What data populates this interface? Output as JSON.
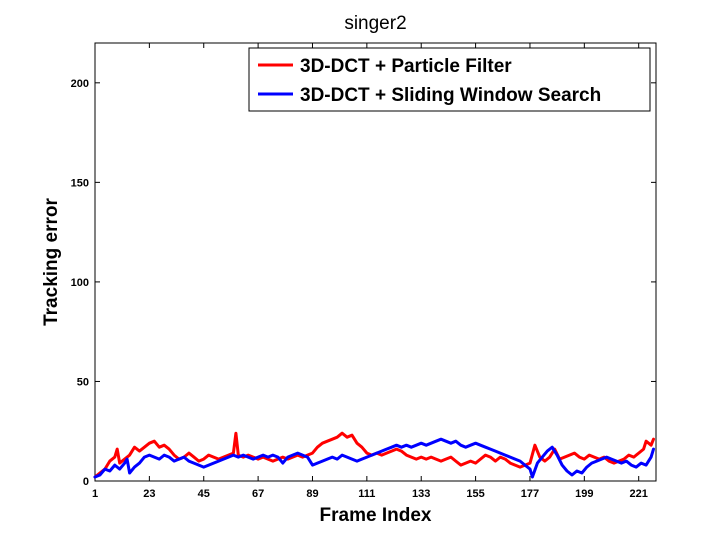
{
  "chart_data": {
    "type": "line",
    "title": "singer2",
    "xlabel": "Frame Index",
    "ylabel": "Tracking error",
    "xlim": [
      1,
      228
    ],
    "ylim": [
      0,
      220
    ],
    "xticks": [
      1,
      23,
      45,
      67,
      89,
      111,
      133,
      155,
      177,
      199,
      221
    ],
    "yticks": [
      0,
      50,
      100,
      150,
      200
    ],
    "grid": false,
    "legend_position": "top-right",
    "series": [
      {
        "name": "3D-DCT + Particle Filter",
        "color": "#ff0000",
        "points": [
          [
            1,
            2
          ],
          [
            3,
            4
          ],
          [
            5,
            6
          ],
          [
            7,
            10
          ],
          [
            9,
            12
          ],
          [
            10,
            16
          ],
          [
            11,
            9
          ],
          [
            13,
            11
          ],
          [
            15,
            13
          ],
          [
            17,
            17
          ],
          [
            19,
            15
          ],
          [
            21,
            17
          ],
          [
            23,
            19
          ],
          [
            25,
            20
          ],
          [
            27,
            17
          ],
          [
            29,
            18
          ],
          [
            31,
            16
          ],
          [
            33,
            13
          ],
          [
            35,
            11
          ],
          [
            37,
            12
          ],
          [
            39,
            14
          ],
          [
            41,
            12
          ],
          [
            43,
            10
          ],
          [
            45,
            11
          ],
          [
            47,
            13
          ],
          [
            49,
            12
          ],
          [
            51,
            11
          ],
          [
            53,
            12
          ],
          [
            55,
            13
          ],
          [
            57,
            14
          ],
          [
            58,
            24
          ],
          [
            59,
            13
          ],
          [
            61,
            12
          ],
          [
            63,
            13
          ],
          [
            65,
            12
          ],
          [
            67,
            11
          ],
          [
            69,
            12
          ],
          [
            71,
            11
          ],
          [
            73,
            10
          ],
          [
            75,
            11
          ],
          [
            77,
            12
          ],
          [
            79,
            11
          ],
          [
            81,
            12
          ],
          [
            83,
            13
          ],
          [
            85,
            12
          ],
          [
            87,
            13
          ],
          [
            89,
            14
          ],
          [
            91,
            17
          ],
          [
            93,
            19
          ],
          [
            95,
            20
          ],
          [
            97,
            21
          ],
          [
            99,
            22
          ],
          [
            101,
            24
          ],
          [
            103,
            22
          ],
          [
            105,
            23
          ],
          [
            107,
            19
          ],
          [
            109,
            17
          ],
          [
            111,
            14
          ],
          [
            113,
            13
          ],
          [
            115,
            14
          ],
          [
            117,
            13
          ],
          [
            119,
            14
          ],
          [
            121,
            15
          ],
          [
            123,
            16
          ],
          [
            125,
            15
          ],
          [
            127,
            13
          ],
          [
            129,
            12
          ],
          [
            131,
            11
          ],
          [
            133,
            12
          ],
          [
            135,
            11
          ],
          [
            137,
            12
          ],
          [
            139,
            11
          ],
          [
            141,
            10
          ],
          [
            143,
            11
          ],
          [
            145,
            12
          ],
          [
            147,
            10
          ],
          [
            149,
            8
          ],
          [
            151,
            9
          ],
          [
            153,
            10
          ],
          [
            155,
            9
          ],
          [
            157,
            11
          ],
          [
            159,
            13
          ],
          [
            161,
            12
          ],
          [
            163,
            10
          ],
          [
            165,
            12
          ],
          [
            167,
            11
          ],
          [
            169,
            9
          ],
          [
            171,
            8
          ],
          [
            173,
            7
          ],
          [
            175,
            8
          ],
          [
            177,
            9
          ],
          [
            179,
            18
          ],
          [
            181,
            12
          ],
          [
            183,
            10
          ],
          [
            185,
            12
          ],
          [
            187,
            16
          ],
          [
            189,
            11
          ],
          [
            191,
            12
          ],
          [
            193,
            13
          ],
          [
            195,
            14
          ],
          [
            197,
            12
          ],
          [
            199,
            11
          ],
          [
            201,
            13
          ],
          [
            203,
            12
          ],
          [
            205,
            11
          ],
          [
            207,
            12
          ],
          [
            209,
            10
          ],
          [
            211,
            9
          ],
          [
            213,
            10
          ],
          [
            215,
            11
          ],
          [
            217,
            13
          ],
          [
            219,
            12
          ],
          [
            221,
            14
          ],
          [
            223,
            16
          ],
          [
            224,
            20
          ],
          [
            226,
            18
          ],
          [
            227,
            21
          ]
        ]
      },
      {
        "name": "3D-DCT + Sliding Window Search",
        "color": "#0000ff",
        "points": [
          [
            1,
            2
          ],
          [
            3,
            3
          ],
          [
            5,
            6
          ],
          [
            7,
            5
          ],
          [
            9,
            8
          ],
          [
            11,
            6
          ],
          [
            13,
            9
          ],
          [
            14,
            11
          ],
          [
            15,
            4
          ],
          [
            17,
            7
          ],
          [
            19,
            9
          ],
          [
            21,
            12
          ],
          [
            23,
            13
          ],
          [
            25,
            12
          ],
          [
            27,
            11
          ],
          [
            29,
            13
          ],
          [
            31,
            12
          ],
          [
            33,
            10
          ],
          [
            35,
            11
          ],
          [
            37,
            12
          ],
          [
            39,
            10
          ],
          [
            41,
            9
          ],
          [
            43,
            8
          ],
          [
            45,
            7
          ],
          [
            47,
            8
          ],
          [
            49,
            9
          ],
          [
            51,
            10
          ],
          [
            53,
            11
          ],
          [
            55,
            12
          ],
          [
            57,
            13
          ],
          [
            59,
            12
          ],
          [
            61,
            13
          ],
          [
            63,
            12
          ],
          [
            65,
            11
          ],
          [
            67,
            12
          ],
          [
            69,
            13
          ],
          [
            71,
            12
          ],
          [
            73,
            13
          ],
          [
            75,
            12
          ],
          [
            77,
            9
          ],
          [
            79,
            12
          ],
          [
            81,
            13
          ],
          [
            83,
            14
          ],
          [
            85,
            13
          ],
          [
            87,
            12
          ],
          [
            89,
            8
          ],
          [
            91,
            9
          ],
          [
            93,
            10
          ],
          [
            95,
            11
          ],
          [
            97,
            12
          ],
          [
            99,
            11
          ],
          [
            101,
            13
          ],
          [
            103,
            12
          ],
          [
            105,
            11
          ],
          [
            107,
            10
          ],
          [
            109,
            11
          ],
          [
            111,
            12
          ],
          [
            113,
            13
          ],
          [
            115,
            14
          ],
          [
            117,
            15
          ],
          [
            119,
            16
          ],
          [
            121,
            17
          ],
          [
            123,
            18
          ],
          [
            125,
            17
          ],
          [
            127,
            18
          ],
          [
            129,
            17
          ],
          [
            131,
            18
          ],
          [
            133,
            19
          ],
          [
            135,
            18
          ],
          [
            137,
            19
          ],
          [
            139,
            20
          ],
          [
            141,
            21
          ],
          [
            143,
            20
          ],
          [
            145,
            19
          ],
          [
            147,
            20
          ],
          [
            149,
            18
          ],
          [
            151,
            17
          ],
          [
            153,
            18
          ],
          [
            155,
            19
          ],
          [
            157,
            18
          ],
          [
            159,
            17
          ],
          [
            161,
            16
          ],
          [
            163,
            15
          ],
          [
            165,
            14
          ],
          [
            167,
            13
          ],
          [
            169,
            12
          ],
          [
            171,
            11
          ],
          [
            173,
            10
          ],
          [
            175,
            8
          ],
          [
            177,
            6
          ],
          [
            178,
            2
          ],
          [
            180,
            9
          ],
          [
            182,
            12
          ],
          [
            184,
            15
          ],
          [
            186,
            17
          ],
          [
            188,
            13
          ],
          [
            190,
            8
          ],
          [
            192,
            5
          ],
          [
            194,
            3
          ],
          [
            196,
            5
          ],
          [
            198,
            4
          ],
          [
            200,
            7
          ],
          [
            202,
            9
          ],
          [
            204,
            10
          ],
          [
            206,
            11
          ],
          [
            208,
            12
          ],
          [
            210,
            11
          ],
          [
            212,
            10
          ],
          [
            214,
            9
          ],
          [
            216,
            10
          ],
          [
            218,
            8
          ],
          [
            220,
            7
          ],
          [
            222,
            9
          ],
          [
            224,
            8
          ],
          [
            226,
            12
          ],
          [
            227,
            16
          ]
        ]
      }
    ]
  }
}
